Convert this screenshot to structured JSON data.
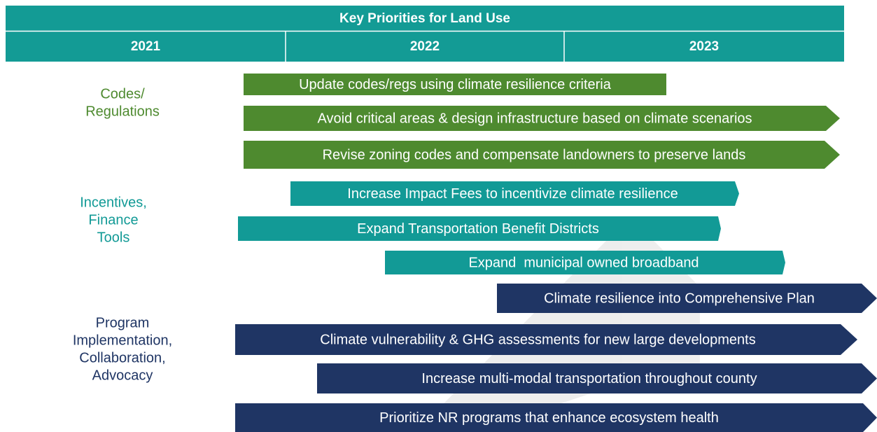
{
  "header": {
    "title": "Key Priorities for Land Use",
    "years": [
      "2021",
      "2022",
      "2023"
    ]
  },
  "groups": [
    {
      "lines": [
        "Codes/",
        "Regulations"
      ]
    },
    {
      "lines": [
        "Incentives,",
        "Finance",
        "Tools"
      ]
    },
    {
      "lines": [
        "Program",
        "Implementation,",
        "Collaboration,",
        "Advocacy"
      ]
    }
  ],
  "bars": [
    {
      "label": "Update codes/regs using climate resilience criteria"
    },
    {
      "label": "Avoid critical areas & design infrastructure based on climate scenarios"
    },
    {
      "label": "Revise zoning codes and compensate landowners to preserve lands"
    },
    {
      "label": "Increase Impact Fees to incentivize climate resilience"
    },
    {
      "label": "Expand Transportation Benefit Districts"
    },
    {
      "label": "Expand  municipal owned broadband"
    },
    {
      "label": "Climate resilience into Comprehensive Plan"
    },
    {
      "label": "Climate vulnerability & GHG assessments for new large developments"
    },
    {
      "label": "Increase multi-modal transportation throughout county"
    },
    {
      "label": "Prioritize NR programs that enhance ecosystem health"
    }
  ]
}
